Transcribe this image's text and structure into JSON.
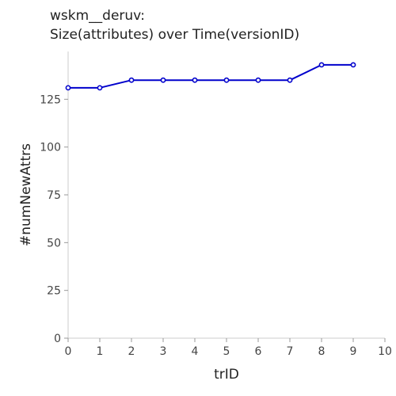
{
  "chart_data": {
    "type": "line",
    "title": "wskm__deruv:",
    "subtitle": "Size(attributes) over Time(versionID)",
    "xlabel": "trID",
    "ylabel": "#numNewAttrs",
    "x": [
      0,
      1,
      2,
      3,
      4,
      5,
      6,
      7,
      8,
      9
    ],
    "y": [
      131,
      131,
      135,
      135,
      135,
      135,
      135,
      135,
      143,
      143
    ],
    "xlim": [
      0,
      10
    ],
    "ylim": [
      0,
      150
    ],
    "xticks": [
      0,
      1,
      2,
      3,
      4,
      5,
      6,
      7,
      8,
      9,
      10
    ],
    "yticks": [
      0,
      25,
      50,
      75,
      100,
      125
    ],
    "grid": false,
    "line_color": "#0000cc",
    "marker": "circle-open"
  }
}
